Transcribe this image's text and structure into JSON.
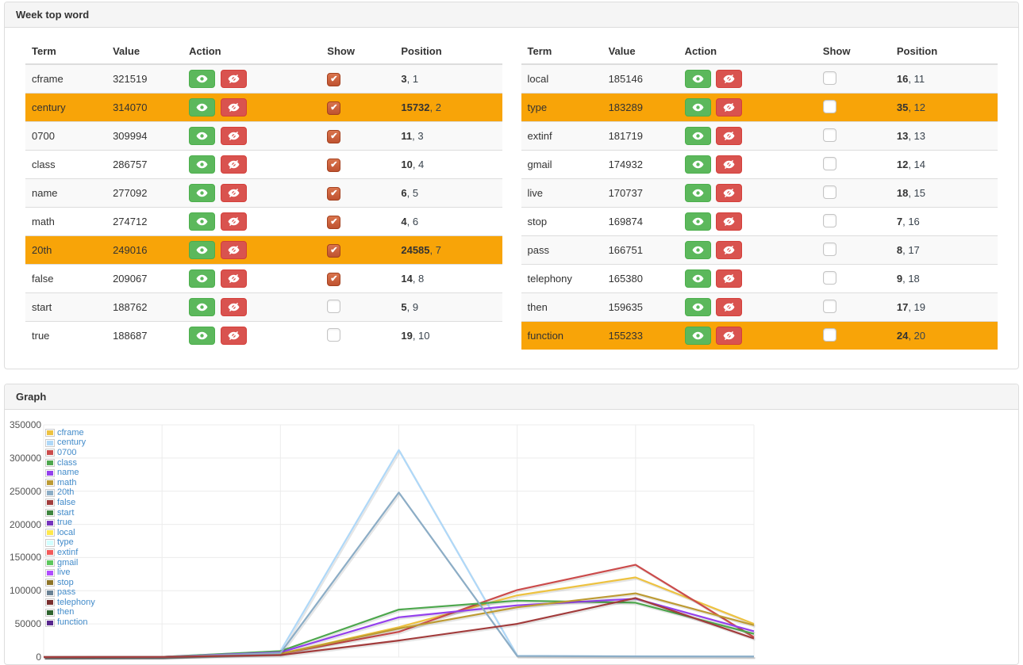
{
  "week_panel": {
    "title": "Week top word"
  },
  "graph_panel": {
    "title": "Graph"
  },
  "table": {
    "headers": {
      "term": "Term",
      "value": "Value",
      "action": "Action",
      "show": "Show",
      "position": "Position"
    },
    "tables": [
      {
        "rows": [
          {
            "term": "cframe",
            "value": 321519,
            "checked": true,
            "highlight": false,
            "pos_rank": 3,
            "pos_order": 1
          },
          {
            "term": "century",
            "value": 314070,
            "checked": true,
            "highlight": true,
            "pos_rank": 15732,
            "pos_order": 2
          },
          {
            "term": "0700",
            "value": 309994,
            "checked": true,
            "highlight": false,
            "pos_rank": 11,
            "pos_order": 3
          },
          {
            "term": "class",
            "value": 286757,
            "checked": true,
            "highlight": false,
            "pos_rank": 10,
            "pos_order": 4
          },
          {
            "term": "name",
            "value": 277092,
            "checked": true,
            "highlight": false,
            "pos_rank": 6,
            "pos_order": 5
          },
          {
            "term": "math",
            "value": 274712,
            "checked": true,
            "highlight": false,
            "pos_rank": 4,
            "pos_order": 6
          },
          {
            "term": "20th",
            "value": 249016,
            "checked": true,
            "highlight": true,
            "pos_rank": 24585,
            "pos_order": 7
          },
          {
            "term": "false",
            "value": 209067,
            "checked": true,
            "highlight": false,
            "pos_rank": 14,
            "pos_order": 8
          },
          {
            "term": "start",
            "value": 188762,
            "checked": false,
            "highlight": false,
            "pos_rank": 5,
            "pos_order": 9
          },
          {
            "term": "true",
            "value": 188687,
            "checked": false,
            "highlight": false,
            "pos_rank": 19,
            "pos_order": 10
          }
        ]
      },
      {
        "rows": [
          {
            "term": "local",
            "value": 185146,
            "checked": false,
            "highlight": false,
            "pos_rank": 16,
            "pos_order": 11
          },
          {
            "term": "type",
            "value": 183289,
            "checked": false,
            "highlight": true,
            "pos_rank": 35,
            "pos_order": 12
          },
          {
            "term": "extinf",
            "value": 181719,
            "checked": false,
            "highlight": false,
            "pos_rank": 13,
            "pos_order": 13
          },
          {
            "term": "gmail",
            "value": 174932,
            "checked": false,
            "highlight": false,
            "pos_rank": 12,
            "pos_order": 14
          },
          {
            "term": "live",
            "value": 170737,
            "checked": false,
            "highlight": false,
            "pos_rank": 18,
            "pos_order": 15
          },
          {
            "term": "stop",
            "value": 169874,
            "checked": false,
            "highlight": false,
            "pos_rank": 7,
            "pos_order": 16
          },
          {
            "term": "pass",
            "value": 166751,
            "checked": false,
            "highlight": false,
            "pos_rank": 8,
            "pos_order": 17
          },
          {
            "term": "telephony",
            "value": 165380,
            "checked": false,
            "highlight": false,
            "pos_rank": 9,
            "pos_order": 18
          },
          {
            "term": "then",
            "value": 159635,
            "checked": false,
            "highlight": false,
            "pos_rank": 17,
            "pos_order": 19
          },
          {
            "term": "function",
            "value": 155233,
            "checked": false,
            "highlight": true,
            "pos_rank": 24,
            "pos_order": 20
          }
        ]
      }
    ]
  },
  "chart_data": {
    "type": "line",
    "x": [
      1,
      2,
      3,
      4,
      5,
      6,
      7
    ],
    "ylim": [
      0,
      350000
    ],
    "ytick_step": 50000,
    "yticks": [
      0,
      50000,
      100000,
      150000,
      200000,
      250000,
      300000,
      350000
    ],
    "grid": true,
    "legend_position": "top-left",
    "series": [
      {
        "name": "cframe",
        "color": "#edc240",
        "values": [
          0,
          300,
          5000,
          45000,
          93000,
          120000,
          50000
        ]
      },
      {
        "name": "century",
        "color": "#afd8f8",
        "values": [
          0,
          300,
          9000,
          312000,
          2000,
          1200,
          1000
        ]
      },
      {
        "name": "0700",
        "color": "#cb4b4b",
        "values": [
          0,
          300,
          5000,
          38000,
          101000,
          139000,
          30000
        ]
      },
      {
        "name": "class",
        "color": "#4da74d",
        "values": [
          0,
          400,
          9000,
          71500,
          85000,
          82000,
          35000
        ]
      },
      {
        "name": "name",
        "color": "#9440ed",
        "values": [
          0,
          300,
          7000,
          60000,
          78000,
          88000,
          39000
        ]
      },
      {
        "name": "math",
        "color": "#bd9b33",
        "values": [
          0,
          300,
          5000,
          43000,
          75000,
          96000,
          48000
        ]
      },
      {
        "name": "20th",
        "color": "#8cadc6",
        "values": [
          0,
          200,
          6000,
          248000,
          1500,
          900,
          700
        ]
      },
      {
        "name": "false",
        "color": "#a23c3c",
        "values": [
          0,
          200,
          3000,
          25000,
          50000,
          89000,
          28000
        ]
      }
    ],
    "legend": [
      {
        "label": "cframe",
        "color": "#edc240"
      },
      {
        "label": "century",
        "color": "#afd8f8"
      },
      {
        "label": "0700",
        "color": "#cb4b4b"
      },
      {
        "label": "class",
        "color": "#4da74d"
      },
      {
        "label": "name",
        "color": "#9440ed"
      },
      {
        "label": "math",
        "color": "#bd9b33"
      },
      {
        "label": "20th",
        "color": "#8cadc6"
      },
      {
        "label": "false",
        "color": "#a23c3c"
      },
      {
        "label": "start",
        "color": "#3e863e"
      },
      {
        "label": "true",
        "color": "#7633be"
      },
      {
        "label": "local",
        "color": "#ffe84c"
      },
      {
        "label": "type",
        "color": "#d2ffff"
      },
      {
        "label": "extinf",
        "color": "#f35a5a"
      },
      {
        "label": "gmail",
        "color": "#5cc85c"
      },
      {
        "label": "live",
        "color": "#b14cff"
      },
      {
        "label": "stop",
        "color": "#8e7426"
      },
      {
        "label": "pass",
        "color": "#698194"
      },
      {
        "label": "telephony",
        "color": "#792d2d"
      },
      {
        "label": "then",
        "color": "#2e642e"
      },
      {
        "label": "function",
        "color": "#58268e"
      }
    ]
  }
}
